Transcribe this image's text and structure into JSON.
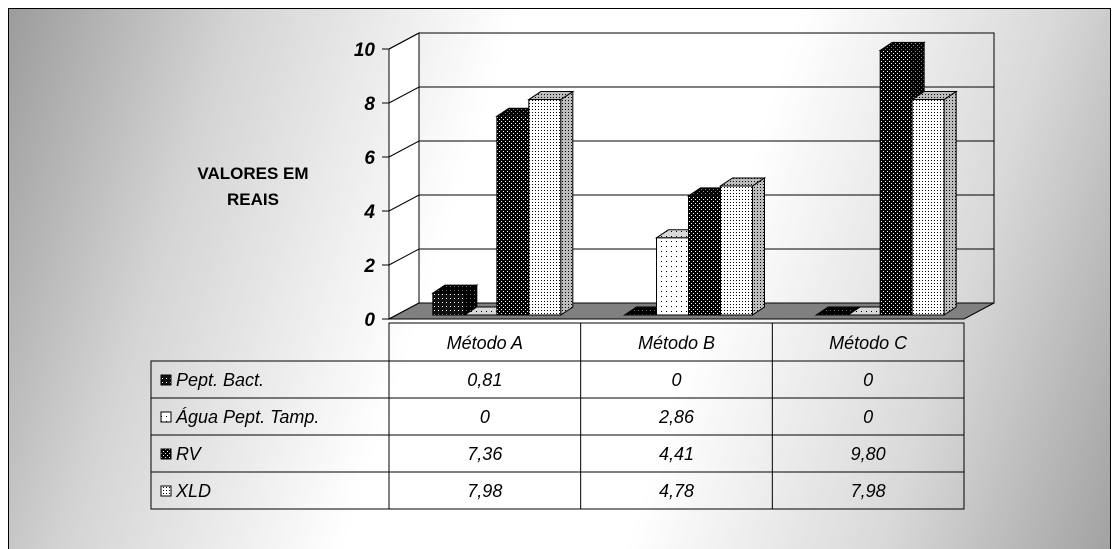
{
  "chart_data": {
    "type": "bar",
    "categories": [
      "Método A",
      "Método B",
      "Método C"
    ],
    "series": [
      {
        "name": "Pept. Bact.",
        "values": [
          0.81,
          0,
          0
        ],
        "labels": [
          "0,81",
          "0",
          "0"
        ],
        "pattern": "dots-black"
      },
      {
        "name": "Água Pept. Tamp.",
        "values": [
          0,
          2.86,
          0
        ],
        "labels": [
          "0",
          "2,86",
          "0"
        ],
        "pattern": "dots-white"
      },
      {
        "name": "RV",
        "values": [
          7.36,
          4.41,
          9.8
        ],
        "labels": [
          "7,36",
          "4,41",
          "9,80"
        ],
        "pattern": "checker-black"
      },
      {
        "name": "XLD",
        "values": [
          7.98,
          4.78,
          7.98
        ],
        "labels": [
          "7,98",
          "4,78",
          "7,98"
        ],
        "pattern": "dots-light"
      }
    ],
    "ylabel_lines": [
      "VALORES EM",
      "REAIS"
    ],
    "ylim": [
      0,
      10
    ],
    "yticks": [
      "0",
      "2",
      "4",
      "6",
      "8",
      "10"
    ],
    "grid": true,
    "legend": "data-table-below",
    "three_d": true
  }
}
